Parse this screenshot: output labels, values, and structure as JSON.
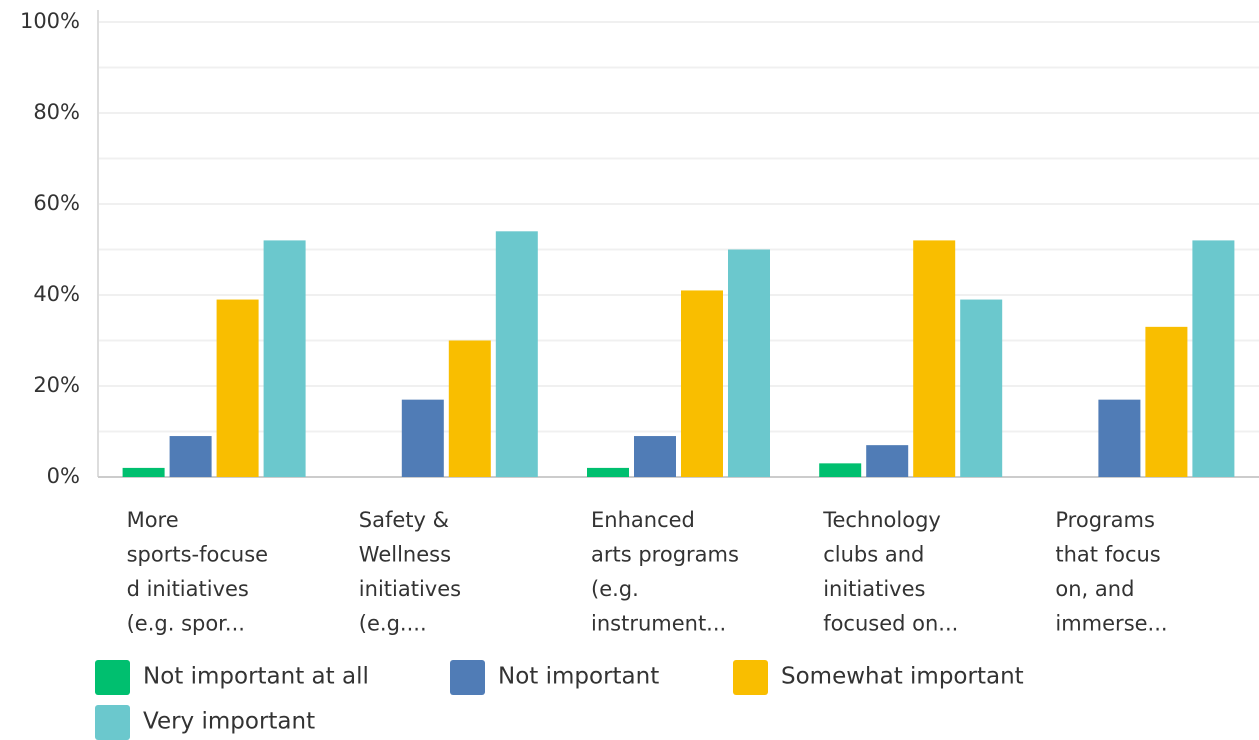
{
  "chart_data": {
    "type": "bar",
    "categories": [
      [
        "More",
        "sports-focuse",
        "d initiatives",
        "(e.g. spor..."
      ],
      [
        "Safety &",
        "Wellness",
        "initiatives",
        "(e.g...."
      ],
      [
        "Enhanced",
        "arts programs",
        "(e.g.",
        "instrument..."
      ],
      [
        "Technology",
        "clubs and",
        "initiatives",
        "focused on..."
      ],
      [
        "Programs",
        "that focus",
        "on, and",
        "immerse..."
      ]
    ],
    "series": [
      {
        "name": "Not important at all",
        "color": "#00bf6f",
        "values": [
          2,
          0,
          2,
          3,
          0
        ]
      },
      {
        "name": "Not important",
        "color": "#507cb6",
        "values": [
          9,
          17,
          9,
          7,
          17
        ]
      },
      {
        "name": "Somewhat important",
        "color": "#f9be00",
        "values": [
          39,
          30,
          41,
          52,
          33
        ]
      },
      {
        "name": "Very important",
        "color": "#6bc8cd",
        "values": [
          52,
          54,
          50,
          39,
          52
        ]
      }
    ],
    "ylim": [
      0,
      100
    ],
    "yticks": [
      {
        "value": 0,
        "label": "0%"
      },
      {
        "value": 20,
        "label": "20%"
      },
      {
        "value": 40,
        "label": "40%"
      },
      {
        "value": 60,
        "label": "60%"
      },
      {
        "value": 80,
        "label": "80%"
      },
      {
        "value": 100,
        "label": "100%"
      }
    ],
    "minor_yticks": [
      10,
      30,
      50,
      70,
      90
    ],
    "grid": true,
    "legend": "bottom"
  }
}
